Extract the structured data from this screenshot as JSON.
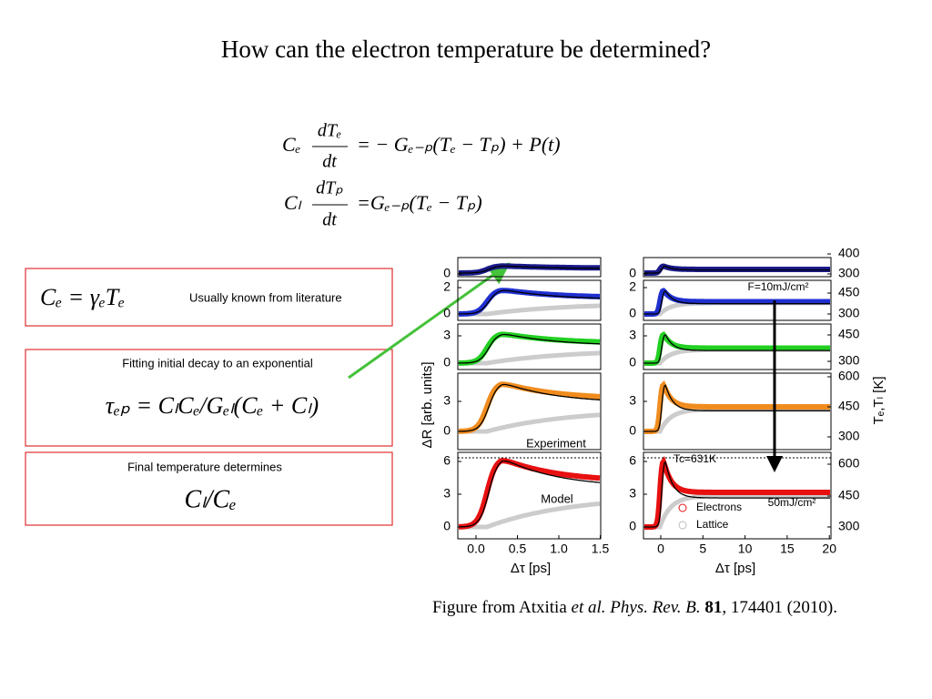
{
  "title": "How can the electron temperature be determined?",
  "equations": [
    {
      "lhs": "Cₑ",
      "numerator": "dTₑ",
      "denominator": "dt",
      "rhs": "= − Gₑ₋ₚ(Tₑ − Tₚ) + P(t)"
    },
    {
      "lhs": "Cₗ",
      "numerator": "dTₚ",
      "denominator": "dt",
      "rhs": "=Gₑ₋ₚ(Tₑ − Tₚ)"
    }
  ],
  "boxes": [
    {
      "formula": "Cₑ = γₑTₑ",
      "text": "Usually known from literature"
    },
    {
      "text": "Fitting initial decay to an exponential",
      "formula": "τₑₚ = CₗCₑ/Gₑₗ(Cₑ + Cₗ)"
    },
    {
      "text": "Final temperature determines",
      "formula": "Cₗ/Cₑ"
    }
  ],
  "figure": {
    "y_axis_label": "ΔR [arb. units]",
    "y2_axis_label": "Tₑ,Tₗ [K]",
    "left": {
      "x_axis_label": "Δτ [ps]",
      "xticks": [
        "0.0",
        "0.5",
        "1.0",
        "1.5"
      ],
      "panels": [
        [
          "0"
        ],
        [
          "2",
          "0"
        ],
        [
          "3",
          "0"
        ],
        [
          "3",
          "0"
        ],
        [
          "6",
          "3",
          "0"
        ]
      ],
      "annotations": [
        "Experiment",
        "Model"
      ]
    },
    "right": {
      "x_axis_label": "Δτ [ps]",
      "xticks": [
        "0",
        "5",
        "10",
        "15",
        "20"
      ],
      "panels": [
        [
          "0"
        ],
        [
          "2",
          "0"
        ],
        [
          "3",
          "0"
        ],
        [
          "3",
          "0"
        ],
        [
          "6",
          "3",
          "0"
        ]
      ],
      "right_ticks": [
        [
          "400",
          "300"
        ],
        [
          "450",
          "300"
        ],
        [
          "450",
          "300"
        ],
        [
          "600",
          "450",
          "300"
        ],
        [
          "600",
          "450",
          "300"
        ]
      ],
      "annotations": [
        "F=10mJ/cm²",
        "Tc=631K",
        "Electrons",
        "Lattice",
        "50mJ/cm²"
      ]
    }
  },
  "caption": [
    "Figure from Atxitia ",
    "et al. Phys. Rev. B.",
    " 81",
    ", 174401 (2010)."
  ]
}
